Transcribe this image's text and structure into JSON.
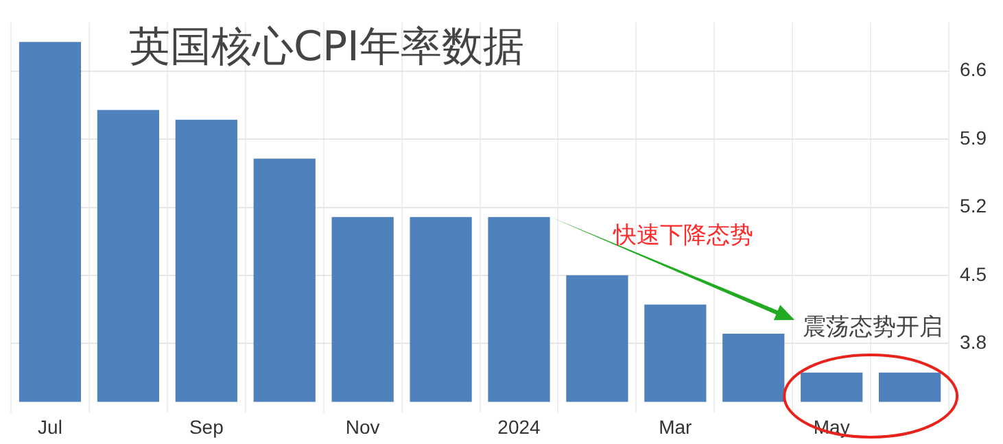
{
  "chart_data": {
    "type": "bar",
    "title": "英国核心CPI年率数据",
    "categories": [
      "Jul",
      null,
      "Sep",
      null,
      "Nov",
      null,
      "2024",
      null,
      "Mar",
      null,
      "May",
      null
    ],
    "values": [
      6.9,
      6.2,
      6.1,
      5.7,
      5.1,
      5.1,
      5.1,
      4.5,
      4.2,
      3.9,
      3.5,
      3.5
    ],
    "color": "#4f81bd",
    "ylim": [
      3.2,
      7.1
    ],
    "yticks": [
      3.8,
      4.5,
      5.2,
      5.9,
      6.6
    ],
    "grid": true,
    "annotations": [
      "快速下降态势",
      "震荡态势开启"
    ]
  }
}
